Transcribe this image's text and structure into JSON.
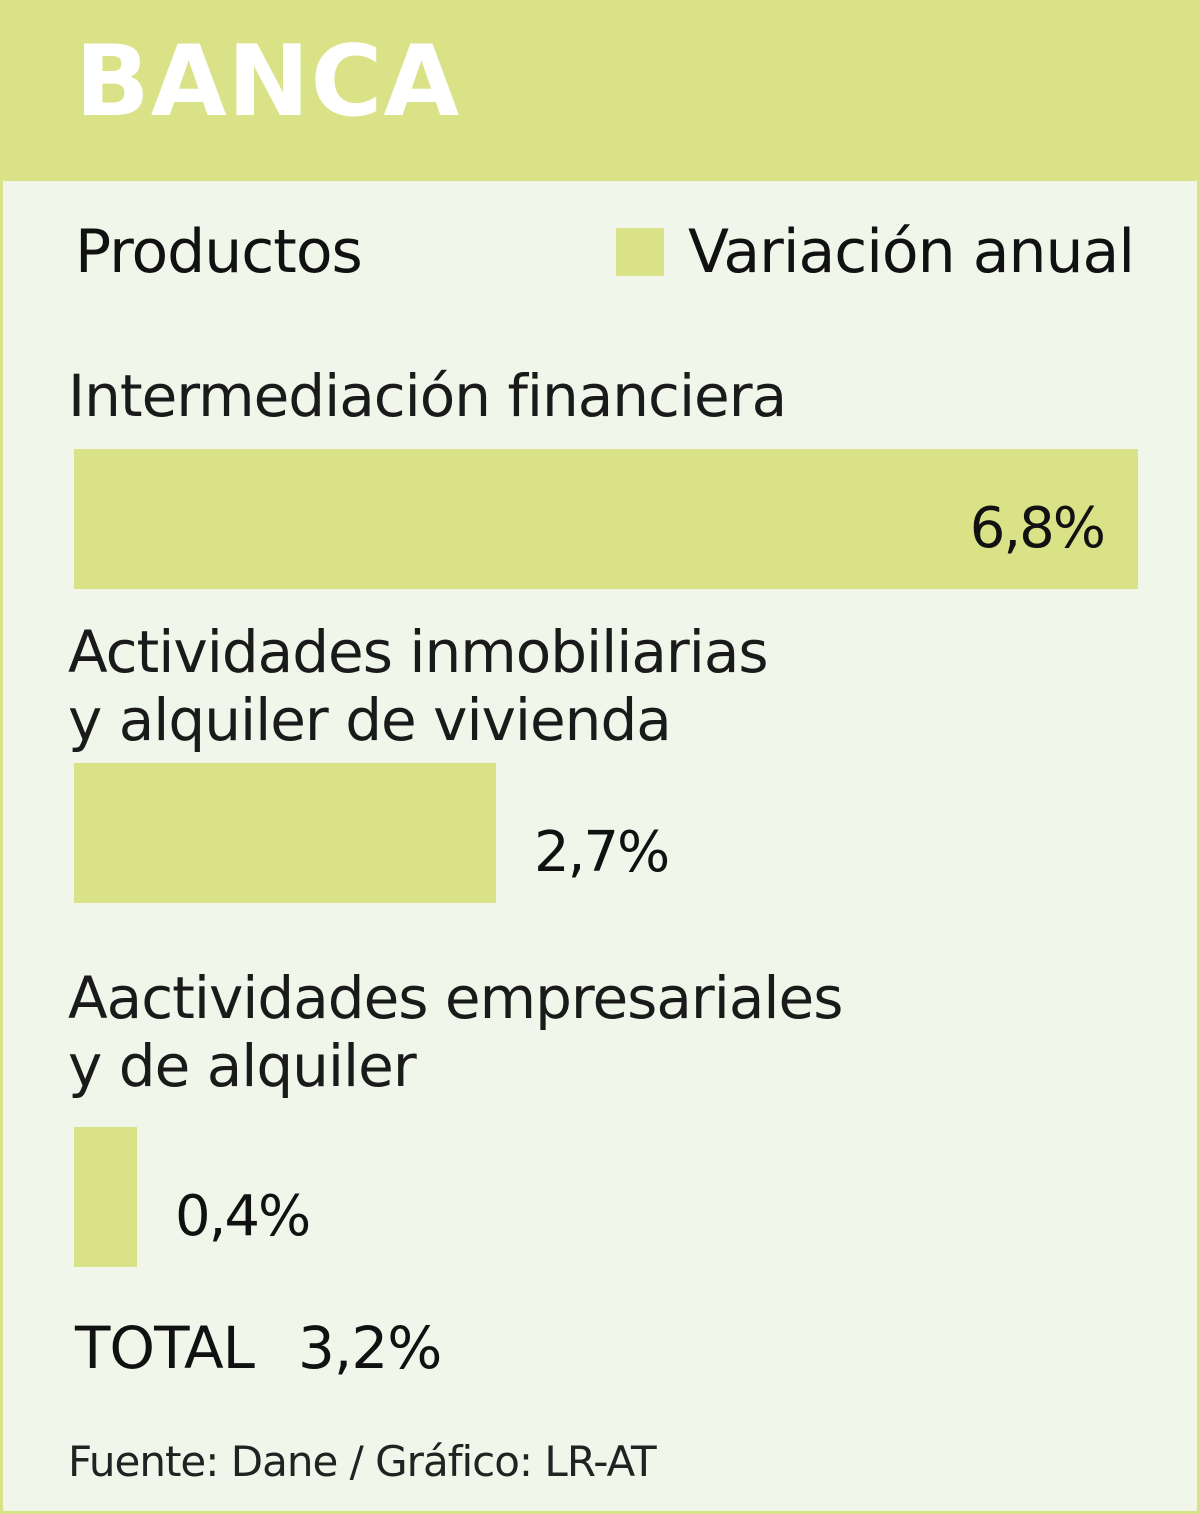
{
  "header": {
    "title": "BANCA"
  },
  "subhead": "Productos",
  "legend": {
    "label": "Variación anual",
    "color": "#dae287"
  },
  "chart_data": {
    "type": "bar",
    "orientation": "horizontal",
    "title": "BANCA",
    "categories": [
      [
        "Intermediación financiera"
      ],
      [
        "Actividades inmobiliarias",
        "y alquiler de vivienda"
      ],
      [
        "Aactividades empresariales",
        "y de alquiler"
      ]
    ],
    "series": [
      {
        "name": "Variación anual",
        "values": [
          6.8,
          2.7,
          0.4
        ]
      }
    ],
    "value_labels": [
      "6,8%",
      "2,7%",
      "0,4%"
    ],
    "unit": "%",
    "xlim": [
      0,
      6.8
    ],
    "grid": false,
    "legend_position": "top-right"
  },
  "total": {
    "label": "TOTAL",
    "value": "3,2%"
  },
  "source": "Fuente: Dane / Gráfico: LR-AT"
}
